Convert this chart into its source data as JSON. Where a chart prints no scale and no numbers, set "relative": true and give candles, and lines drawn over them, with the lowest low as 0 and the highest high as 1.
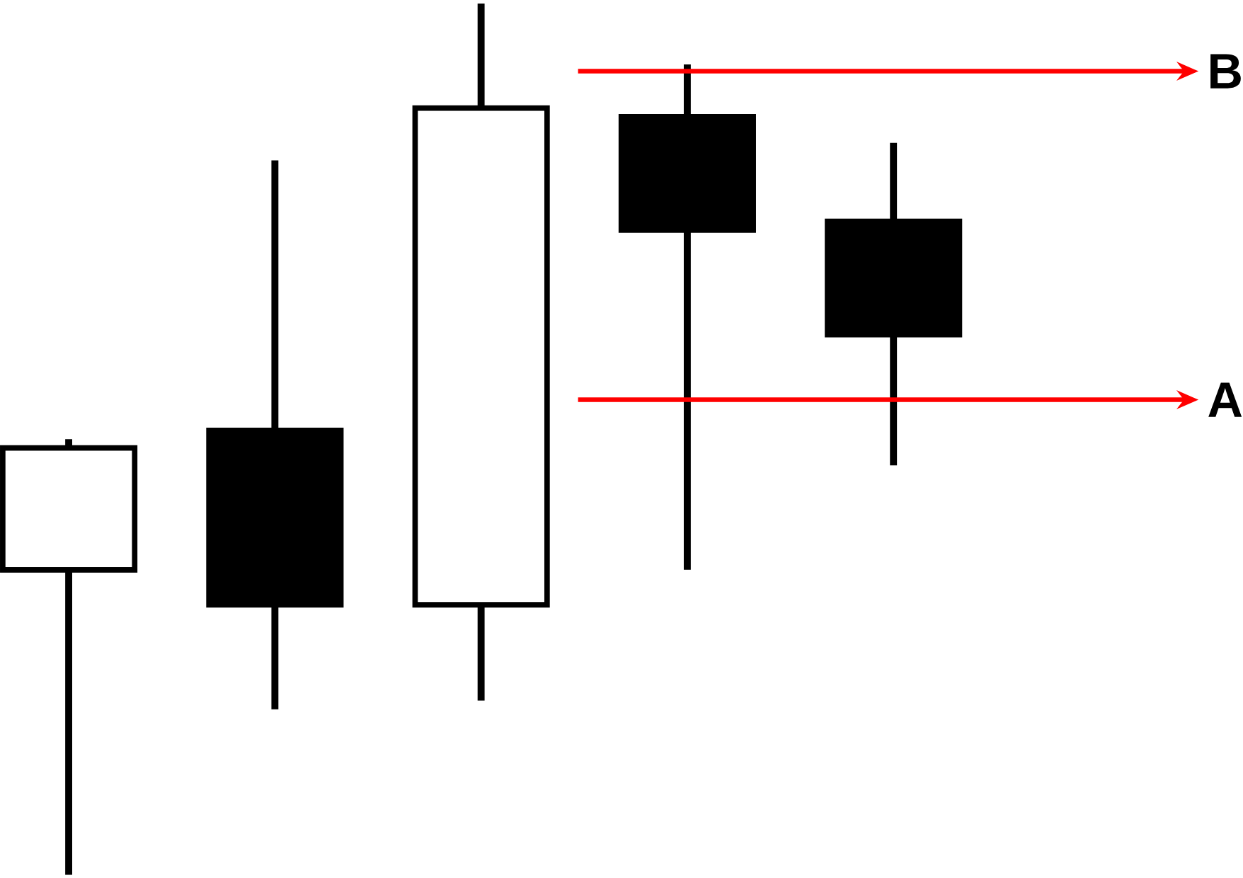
{
  "chart_data": {
    "type": "candlestick",
    "relative": true,
    "categories": [
      null,
      null,
      null,
      null,
      null
    ],
    "ohlc": [
      [
        0.35,
        0.5,
        0,
        0.49
      ],
      [
        0.51,
        0.82,
        0.19,
        0.31
      ],
      [
        0.31,
        1,
        0.2,
        0.88
      ],
      [
        0.87,
        0.93,
        0.35,
        0.74
      ],
      [
        0.75,
        0.84,
        0.47,
        0.62
      ]
    ],
    "annotations": [
      "B",
      "A"
    ]
  }
}
